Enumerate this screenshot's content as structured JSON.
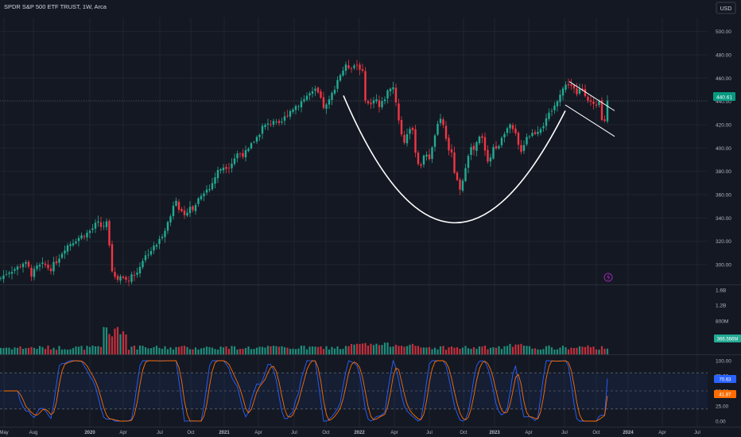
{
  "header": {
    "title": "SPDR S&P 500 ETF TRUST, 1W, Arca",
    "currency": "USD"
  },
  "chart_data": [
    {
      "type": "candlestick",
      "title": "SPDR S&P 500 ETF TRUST, 1W, Arca",
      "y_ticks": [
        300,
        320,
        340,
        360,
        380,
        400,
        420,
        440,
        460,
        480,
        500
      ],
      "ylim": [
        283,
        512
      ],
      "x_ticks": [
        "May",
        "Aug",
        "2020",
        "Apr",
        "Jul",
        "Oct",
        "2021",
        "Apr",
        "Jul",
        "Oct",
        "2022",
        "Apr",
        "Jul",
        "Oct",
        "2023",
        "Apr",
        "Jul",
        "Oct",
        "2024",
        "Apr",
        "Jul"
      ],
      "last_price": 440.61,
      "last_price_label": "440.61",
      "close_path": [
        [
          0,
          288
        ],
        [
          10,
          294
        ],
        [
          24,
          298
        ],
        [
          28,
          302
        ],
        [
          33,
          300
        ],
        [
          37,
          296
        ],
        [
          40,
          291
        ],
        [
          47,
          298
        ],
        [
          56,
          300
        ],
        [
          63,
          296
        ],
        [
          70,
          302
        ],
        [
          82,
          315
        ],
        [
          96,
          322
        ],
        [
          104,
          325
        ],
        [
          110,
          327
        ],
        [
          118,
          332
        ],
        [
          122,
          336
        ],
        [
          128,
          332
        ],
        [
          134,
          336
        ],
        [
          137,
          322
        ],
        [
          140,
          300
        ],
        [
          143,
          290
        ],
        [
          147,
          287
        ],
        [
          152,
          290
        ],
        [
          160,
          286
        ],
        [
          166,
          292
        ],
        [
          170,
          290
        ],
        [
          174,
          296
        ],
        [
          178,
          303
        ],
        [
          186,
          310
        ],
        [
          194,
          315
        ],
        [
          200,
          320
        ],
        [
          208,
          332
        ],
        [
          214,
          340
        ],
        [
          218,
          352
        ],
        [
          222,
          358
        ],
        [
          226,
          346
        ],
        [
          232,
          340
        ],
        [
          238,
          352
        ],
        [
          242,
          345
        ],
        [
          246,
          352
        ],
        [
          252,
          360
        ],
        [
          258,
          364
        ],
        [
          264,
          365
        ],
        [
          268,
          372
        ],
        [
          274,
          380
        ],
        [
          280,
          384
        ],
        [
          288,
          385
        ],
        [
          292,
          388
        ],
        [
          298,
          395
        ],
        [
          306,
          395
        ],
        [
          312,
          397
        ],
        [
          318,
          405
        ],
        [
          324,
          410
        ],
        [
          330,
          418
        ],
        [
          338,
          420
        ],
        [
          344,
          424
        ],
        [
          350,
          418
        ],
        [
          356,
          424
        ],
        [
          362,
          430
        ],
        [
          368,
          434
        ],
        [
          374,
          437
        ],
        [
          382,
          442
        ],
        [
          388,
          446
        ],
        [
          394,
          447
        ],
        [
          398,
          450
        ],
        [
          404,
          440
        ],
        [
          408,
          434
        ],
        [
          412,
          437
        ],
        [
          418,
          447
        ],
        [
          424,
          458
        ],
        [
          430,
          466
        ],
        [
          436,
          470
        ],
        [
          442,
          470
        ],
        [
          448,
          472
        ],
        [
          452,
          470
        ],
        [
          456,
          464
        ],
        [
          460,
          440
        ],
        [
          466,
          436
        ],
        [
          472,
          446
        ],
        [
          476,
          434
        ],
        [
          480,
          438
        ],
        [
          486,
          446
        ],
        [
          490,
          452
        ],
        [
          494,
          454
        ],
        [
          498,
          440
        ],
        [
          504,
          414
        ],
        [
          508,
          404
        ],
        [
          514,
          418
        ],
        [
          520,
          412
        ],
        [
          524,
          390
        ],
        [
          528,
          384
        ],
        [
          532,
          390
        ],
        [
          536,
          396
        ],
        [
          540,
          392
        ],
        [
          544,
          400
        ],
        [
          548,
          416
        ],
        [
          552,
          420
        ],
        [
          556,
          426
        ],
        [
          560,
          410
        ],
        [
          564,
          400
        ],
        [
          568,
          394
        ],
        [
          572,
          378
        ],
        [
          576,
          368
        ],
        [
          580,
          360
        ],
        [
          584,
          380
        ],
        [
          588,
          394
        ],
        [
          592,
          400
        ],
        [
          596,
          398
        ],
        [
          600,
          404
        ],
        [
          604,
          410
        ],
        [
          608,
          406
        ],
        [
          612,
          392
        ],
        [
          616,
          388
        ],
        [
          620,
          402
        ],
        [
          624,
          398
        ],
        [
          628,
          404
        ],
        [
          632,
          412
        ],
        [
          636,
          416
        ],
        [
          642,
          418
        ],
        [
          648,
          412
        ],
        [
          652,
          402
        ],
        [
          656,
          398
        ],
        [
          662,
          410
        ],
        [
          668,
          412
        ],
        [
          674,
          414
        ],
        [
          680,
          418
        ],
        [
          686,
          422
        ],
        [
          692,
          430
        ],
        [
          698,
          436
        ],
        [
          702,
          444
        ],
        [
          706,
          450
        ],
        [
          710,
          452
        ],
        [
          714,
          456
        ],
        [
          718,
          454
        ],
        [
          722,
          450
        ],
        [
          726,
          444
        ],
        [
          730,
          452
        ],
        [
          734,
          450
        ],
        [
          738,
          444
        ],
        [
          742,
          440
        ],
        [
          746,
          436
        ],
        [
          750,
          434
        ],
        [
          754,
          440
        ],
        [
          758,
          418
        ],
        [
          762,
          428
        ],
        [
          766,
          440.61
        ]
      ],
      "annotations": [
        {
          "type": "cup-curve",
          "points": [
            [
              432,
              445
            ],
            [
              568,
              336
            ],
            [
              711,
              432
            ]
          ]
        },
        {
          "type": "trendline",
          "from": [
            716,
            457
          ],
          "to": [
            773,
            432
          ]
        },
        {
          "type": "trendline",
          "from": [
            711,
            437
          ],
          "to": [
            773,
            410
          ]
        }
      ]
    },
    {
      "type": "bar",
      "title": "Volume",
      "y_ticks": [
        "800M",
        "1.2B",
        "1.6B"
      ],
      "last_value_label": "366.566M",
      "colors": {
        "up": "#22ab94",
        "down": "#f23645"
      }
    },
    {
      "type": "line",
      "title": "Stochastic RSI",
      "ylim": [
        0,
        100
      ],
      "y_ticks": [
        "0.00",
        "25.00",
        "50.00",
        "75.00",
        "100.00"
      ],
      "bands": [
        20,
        80
      ],
      "series": [
        {
          "color": "#2962ff",
          "last_value": 70.63,
          "last_label": "70.63"
        },
        {
          "color": "#ff6d00",
          "last_value": 41.87,
          "last_label": "41.87"
        }
      ]
    }
  ],
  "colors": {
    "background": "#141822",
    "grid": "#20242f",
    "text": "#b2b5be",
    "up": "#22ab94",
    "down": "#f23645",
    "price_label": "#089981",
    "lightning": "#9c27b0"
  }
}
